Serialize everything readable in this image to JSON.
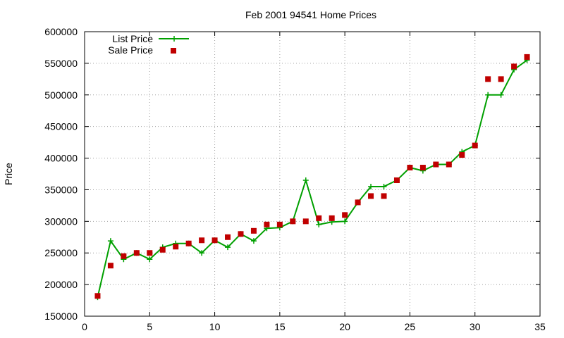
{
  "chart_data": {
    "type": "line",
    "title": "Feb 2001 94541 Home Prices",
    "xlabel": "",
    "ylabel": "Price",
    "xlim": [
      0,
      35
    ],
    "ylim": [
      150000,
      600000
    ],
    "x_ticks": [
      0,
      5,
      10,
      15,
      20,
      25,
      30,
      35
    ],
    "y_ticks": [
      150000,
      200000,
      250000,
      300000,
      350000,
      400000,
      450000,
      500000,
      550000,
      600000
    ],
    "grid": true,
    "legend_position": "top-left",
    "series": [
      {
        "name": "List Price",
        "style": "line-with-plus-markers",
        "color": "#00a000",
        "x": [
          1,
          2,
          3,
          4,
          5,
          6,
          7,
          8,
          9,
          10,
          11,
          12,
          13,
          14,
          15,
          16,
          17,
          18,
          19,
          20,
          21,
          22,
          23,
          24,
          25,
          26,
          27,
          28,
          29,
          30,
          31,
          32,
          33,
          34
        ],
        "values": [
          180000,
          269000,
          240000,
          250000,
          240000,
          259000,
          265000,
          265000,
          250000,
          270000,
          259000,
          280000,
          269000,
          289000,
          290000,
          300000,
          365000,
          295000,
          299000,
          300000,
          330000,
          355000,
          355000,
          365000,
          385000,
          380000,
          390000,
          390000,
          410000,
          420000,
          500000,
          500000,
          540000,
          555000
        ]
      },
      {
        "name": "Sale Price",
        "style": "square-markers",
        "color": "#c00000",
        "x": [
          1,
          2,
          3,
          4,
          5,
          6,
          7,
          8,
          9,
          10,
          11,
          12,
          13,
          14,
          15,
          16,
          17,
          18,
          19,
          20,
          21,
          22,
          23,
          24,
          25,
          26,
          27,
          28,
          29,
          30,
          31,
          32,
          33,
          34
        ],
        "values": [
          182000,
          230000,
          245000,
          250000,
          250000,
          255000,
          260000,
          265000,
          270000,
          270000,
          275000,
          280000,
          285000,
          295000,
          295000,
          300000,
          300000,
          305000,
          305000,
          310000,
          330000,
          340000,
          340000,
          365000,
          385000,
          385000,
          390000,
          390000,
          405000,
          420000,
          525000,
          525000,
          545000,
          560000
        ]
      }
    ]
  }
}
